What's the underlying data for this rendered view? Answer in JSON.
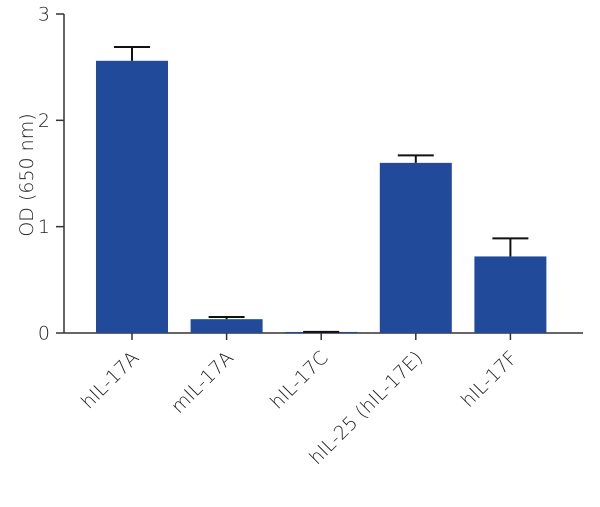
{
  "chart_data": {
    "type": "bar",
    "y_label": "OD (650 nm)",
    "categories": [
      "hIL-17A",
      "mIL-17A",
      "hIL-17C",
      "hIL-25 (hIL-17E)",
      "hIL-17F"
    ],
    "values": [
      2.56,
      0.13,
      0.01,
      1.6,
      0.72
    ],
    "errors": [
      0.13,
      0.02,
      0.0,
      0.07,
      0.17
    ],
    "color": "#214a9a",
    "ylim": [
      0,
      3
    ],
    "yticks": [
      0,
      1,
      2,
      3
    ]
  }
}
